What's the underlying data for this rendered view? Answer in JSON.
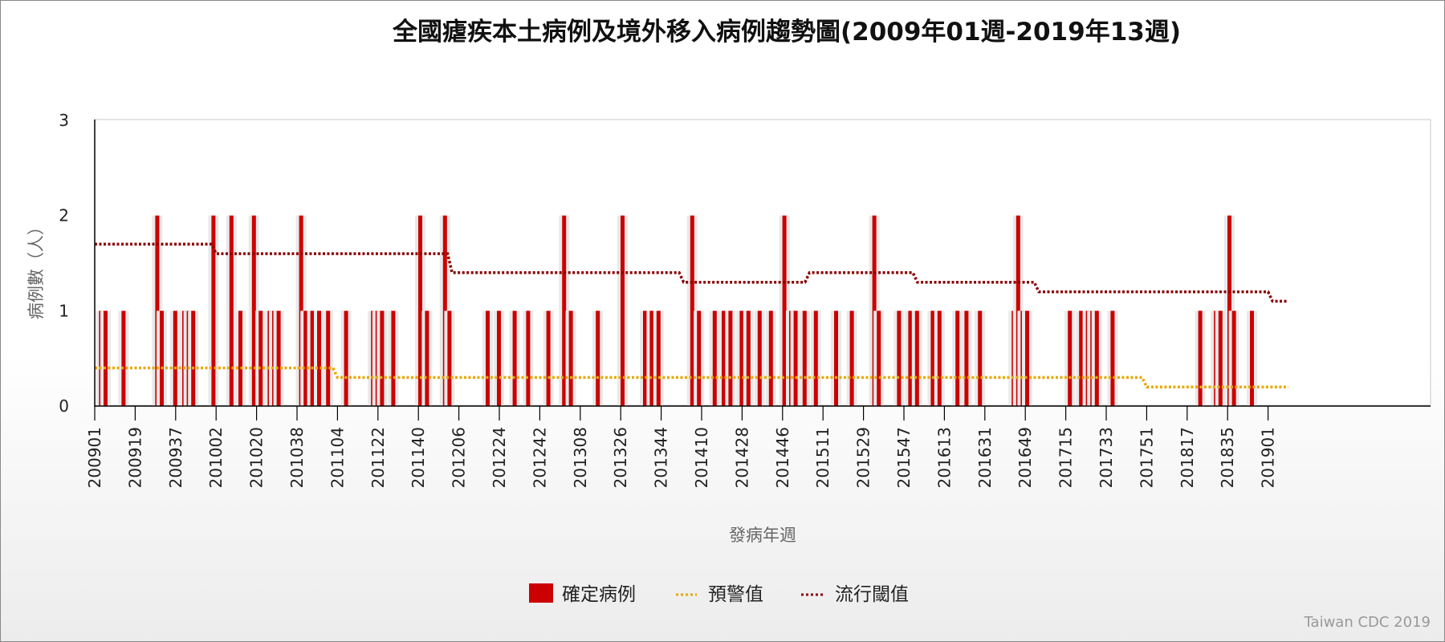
{
  "chart_data": {
    "type": "bar",
    "title": "全國瘧疾本土病例及境外移入病例趨勢圖(2009年01週-2019年13週)",
    "xlabel": "發病年週",
    "ylabel": "病例數（人）",
    "ylim": [
      0,
      3
    ],
    "y_ticks": [
      "0",
      "1",
      "2",
      "3"
    ],
    "x_ticks": [
      "200901",
      "200919",
      "200937",
      "201002",
      "201020",
      "201038",
      "201104",
      "201122",
      "201140",
      "201206",
      "201224",
      "201242",
      "201308",
      "201326",
      "201344",
      "201410",
      "201428",
      "201446",
      "201511",
      "201529",
      "201547",
      "201613",
      "201631",
      "201649",
      "201715",
      "201733",
      "201751",
      "201817",
      "201835",
      "201901"
    ],
    "series": [
      {
        "name": "確定病例",
        "kind": "bar",
        "color": "#cc0000",
        "points": [
          [
            3,
            1
          ],
          [
            5,
            1
          ],
          [
            13,
            1
          ],
          [
            28,
            2
          ],
          [
            30,
            1
          ],
          [
            36,
            1
          ],
          [
            40,
            1
          ],
          [
            42,
            1
          ],
          [
            44,
            1
          ],
          [
            53,
            2
          ],
          [
            61,
            2
          ],
          [
            65,
            1
          ],
          [
            71,
            2
          ],
          [
            74,
            1
          ],
          [
            78,
            1
          ],
          [
            80,
            1
          ],
          [
            82,
            1
          ],
          [
            92,
            2
          ],
          [
            94,
            1
          ],
          [
            97,
            1
          ],
          [
            100,
            1
          ],
          [
            104,
            1
          ],
          [
            112,
            1
          ],
          [
            124,
            1
          ],
          [
            126,
            1
          ],
          [
            128,
            1
          ],
          [
            133,
            1
          ],
          [
            145,
            2
          ],
          [
            148,
            1
          ],
          [
            156,
            2
          ],
          [
            158,
            1
          ],
          [
            175,
            1
          ],
          [
            180,
            1
          ],
          [
            187,
            1
          ],
          [
            193,
            1
          ],
          [
            202,
            1
          ],
          [
            209,
            2
          ],
          [
            212,
            1
          ],
          [
            224,
            1
          ],
          [
            235,
            2
          ],
          [
            245,
            1
          ],
          [
            248,
            1
          ],
          [
            251,
            1
          ],
          [
            266,
            2
          ],
          [
            269,
            1
          ],
          [
            276,
            1
          ],
          [
            280,
            1
          ],
          [
            283,
            1
          ],
          [
            288,
            1
          ],
          [
            291,
            1
          ],
          [
            296,
            1
          ],
          [
            301,
            1
          ],
          [
            307,
            2
          ],
          [
            310,
            1
          ],
          [
            312,
            1
          ],
          [
            316,
            1
          ],
          [
            321,
            1
          ],
          [
            330,
            1
          ],
          [
            337,
            1
          ],
          [
            347,
            2
          ],
          [
            349,
            1
          ],
          [
            358,
            1
          ],
          [
            363,
            1
          ],
          [
            366,
            1
          ],
          [
            373,
            1
          ],
          [
            376,
            1
          ],
          [
            384,
            1
          ],
          [
            388,
            1
          ],
          [
            394,
            1
          ],
          [
            409,
            1
          ],
          [
            411,
            2
          ],
          [
            413,
            1
          ],
          [
            415,
            1
          ],
          [
            434,
            1
          ],
          [
            439,
            1
          ],
          [
            442,
            1
          ],
          [
            444,
            1
          ],
          [
            446,
            1
          ],
          [
            453,
            1
          ],
          [
            492,
            1
          ],
          [
            499,
            1
          ],
          [
            501,
            1
          ],
          [
            505,
            2
          ],
          [
            507,
            1
          ],
          [
            515,
            1
          ]
        ]
      },
      {
        "name": "預警值",
        "kind": "line",
        "color": "#e8a800",
        "steps": [
          [
            0,
            0.4
          ],
          [
            106,
            0.4
          ],
          [
            108,
            0.3
          ],
          [
            466,
            0.3
          ],
          [
            468,
            0.2
          ],
          [
            531,
            0.2
          ]
        ]
      },
      {
        "name": "流行閾值",
        "kind": "line",
        "color": "#8b0000",
        "steps": [
          [
            0,
            1.7
          ],
          [
            52,
            1.7
          ],
          [
            54,
            1.6
          ],
          [
            157,
            1.6
          ],
          [
            159,
            1.4
          ],
          [
            260,
            1.4
          ],
          [
            262,
            1.3
          ],
          [
            316,
            1.3
          ],
          [
            318,
            1.4
          ],
          [
            364,
            1.4
          ],
          [
            366,
            1.3
          ],
          [
            418,
            1.3
          ],
          [
            420,
            1.2
          ],
          [
            522,
            1.2
          ],
          [
            524,
            1.1
          ],
          [
            531,
            1.1
          ]
        ]
      }
    ],
    "grid": false,
    "legend_position": "bottom"
  },
  "credit": "Taiwan CDC 2019"
}
